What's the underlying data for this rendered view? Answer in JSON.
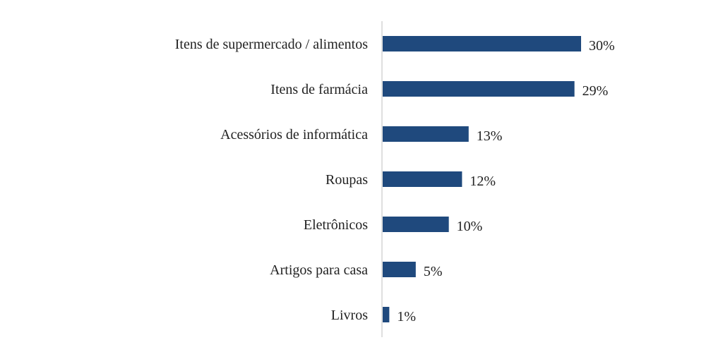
{
  "chart_data": {
    "type": "bar",
    "orientation": "horizontal",
    "categories": [
      "Itens de supermercado / alimentos",
      "Itens de farmácia",
      "Acessórios de informática",
      "Roupas",
      "Eletrônicos",
      "Artigos para casa",
      "Livros"
    ],
    "values": [
      30,
      29,
      13,
      12,
      10,
      5,
      1
    ],
    "value_labels": [
      "30%",
      "29%",
      "13%",
      "12%",
      "10%",
      "5%",
      "1%"
    ],
    "unit": "%",
    "xlim": [
      0,
      31
    ],
    "grid": false,
    "legend": "none",
    "title": "",
    "xlabel": "",
    "ylabel": "",
    "bar_color": "#1F497D",
    "axis_color": "#BFBFBF"
  }
}
